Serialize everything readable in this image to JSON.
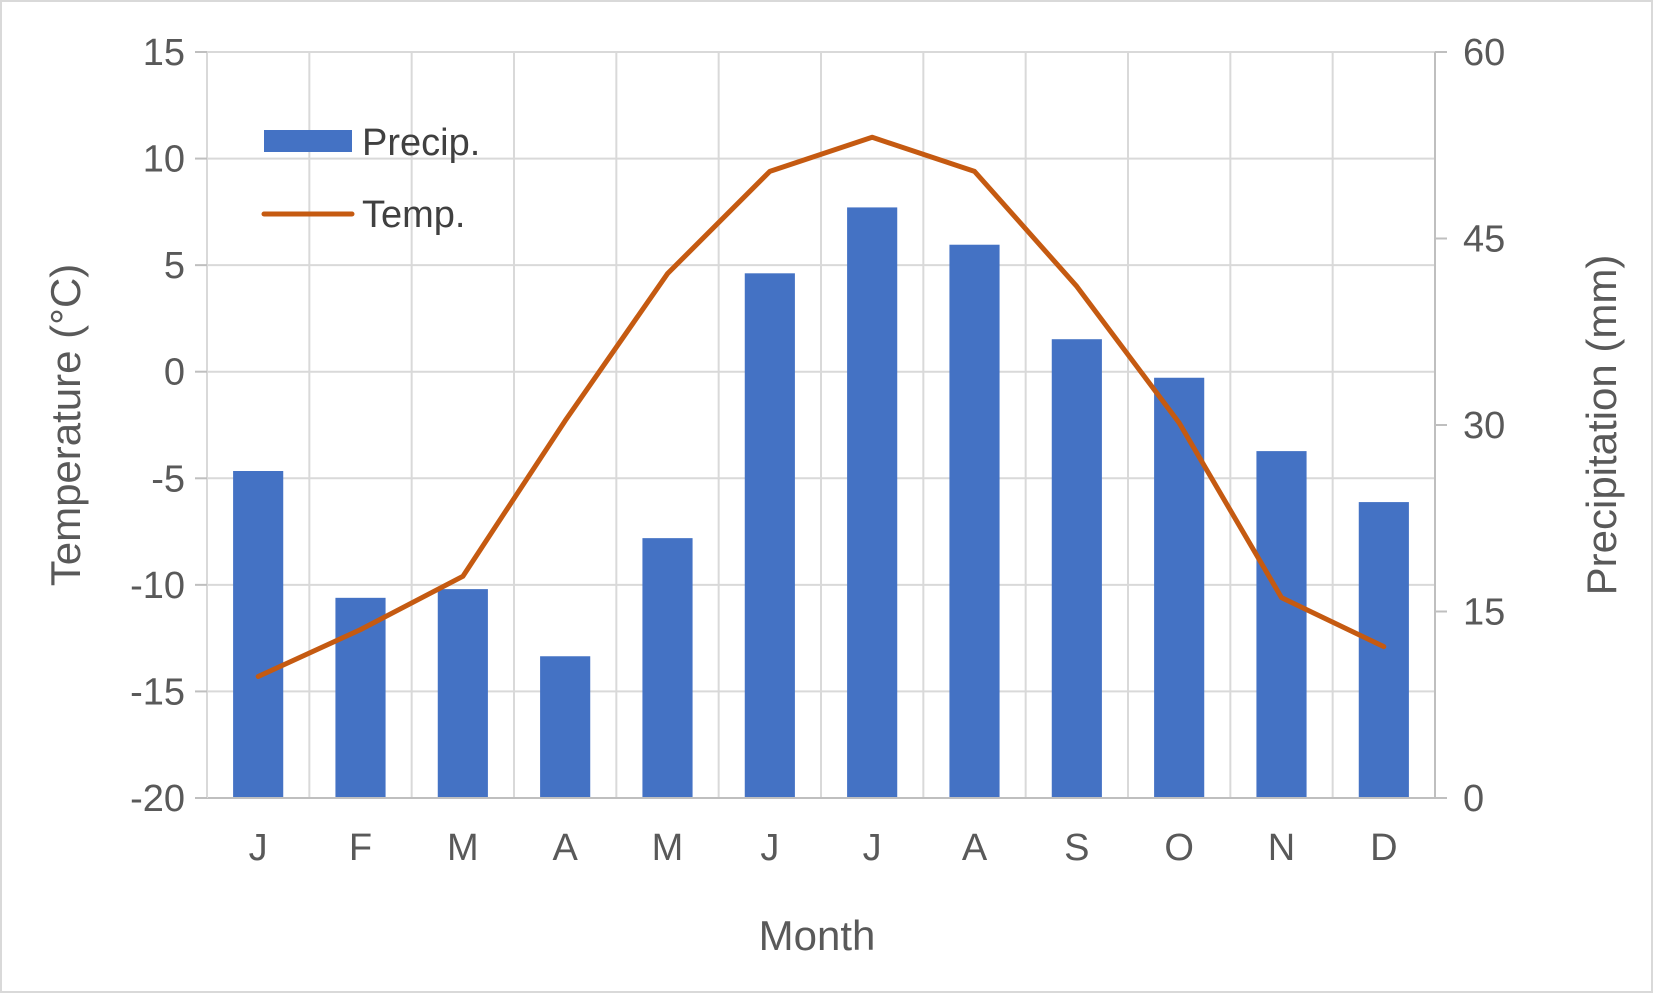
{
  "chart_data": {
    "type": "bar+line",
    "title": "",
    "xlabel": "Month",
    "categories": [
      "J",
      "F",
      "M",
      "A",
      "M",
      "J",
      "J",
      "A",
      "S",
      "O",
      "N",
      "D"
    ],
    "y_left": {
      "label": "Temperature (°C)",
      "lim": [
        -20,
        15
      ],
      "ticks": [
        15,
        10,
        5,
        0,
        -5,
        -10,
        -15,
        -20
      ]
    },
    "y_right": {
      "label": "Precipitation (mm)",
      "lim": [
        0,
        60
      ],
      "ticks": [
        60,
        45,
        30,
        15,
        0
      ]
    },
    "grid": true,
    "legend": {
      "position": "top-left"
    },
    "series": [
      {
        "name": "Precip.",
        "type": "bar",
        "axis": "right",
        "color": "#4472c4",
        "values": [
          26.3,
          16.1,
          16.8,
          11.4,
          20.9,
          42.2,
          47.5,
          44.5,
          36.9,
          33.8,
          27.9,
          23.8
        ]
      },
      {
        "name": "Temp.",
        "type": "line",
        "axis": "left",
        "color": "#c55a11",
        "values": [
          -14.3,
          -12.1,
          -9.6,
          -2.3,
          4.6,
          9.4,
          11.0,
          9.4,
          4.0,
          -2.4,
          -10.6,
          -12.9
        ]
      }
    ]
  }
}
